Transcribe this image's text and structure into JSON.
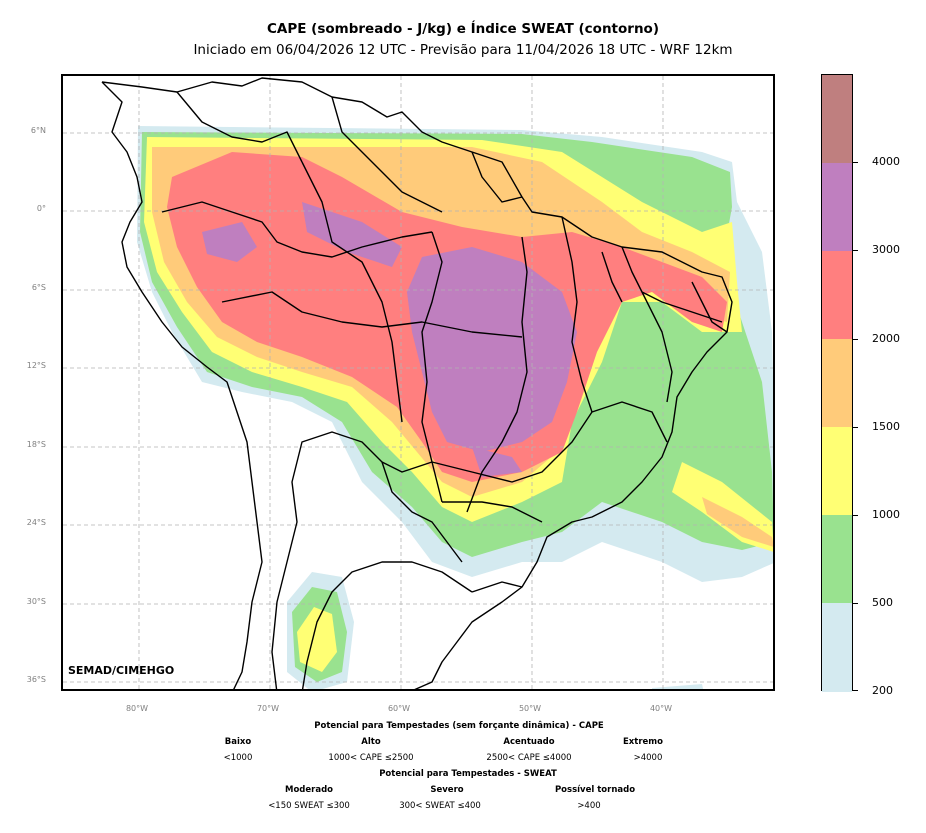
{
  "title": "CAPE (sombreado - J/kg) e Índice SWEAT (contorno)",
  "subtitle": "Iniciado em 06/04/2026 12 UTC - Previsão para 11/04/2026 18 UTC - WRF 12km",
  "credit": "SEMAD/CIMEHGO",
  "map": {
    "lat_labels": [
      "6°N",
      "0°",
      "6°S",
      "12°S",
      "18°S",
      "24°S",
      "30°S",
      "36°S"
    ],
    "lon_labels": [
      "80°W",
      "70°W",
      "60°W",
      "50°W",
      "40°W"
    ],
    "gridlines": true
  },
  "colorbar": {
    "ticks": [
      "200",
      "500",
      "1000",
      "1500",
      "2000",
      "3000",
      "4000"
    ],
    "colors": [
      "#d4eaf0",
      "#99e28f",
      "#ffff74",
      "#ffcb7a",
      "#ff7f7f",
      "#bf7fbf",
      "#bf7f7f"
    ]
  },
  "legend": {
    "cape_title": "Potencial para Tempestades (sem forçante dinâmica) - CAPE",
    "cape_levels": [
      {
        "name": "Baixo",
        "range": "<1000"
      },
      {
        "name": "Alto",
        "range": "1000< CAPE ≤2500"
      },
      {
        "name": "Acentuado",
        "range": "2500< CAPE ≤4000"
      },
      {
        "name": "Extremo",
        "range": ">4000"
      }
    ],
    "sweat_title": "Potencial para Tempestades - SWEAT",
    "sweat_levels": [
      {
        "name": "Moderado",
        "range": "<150 SWEAT ≤300"
      },
      {
        "name": "Severo",
        "range": "300< SWEAT ≤400"
      },
      {
        "name": "Possível tornado",
        "range": ">400"
      }
    ]
  }
}
